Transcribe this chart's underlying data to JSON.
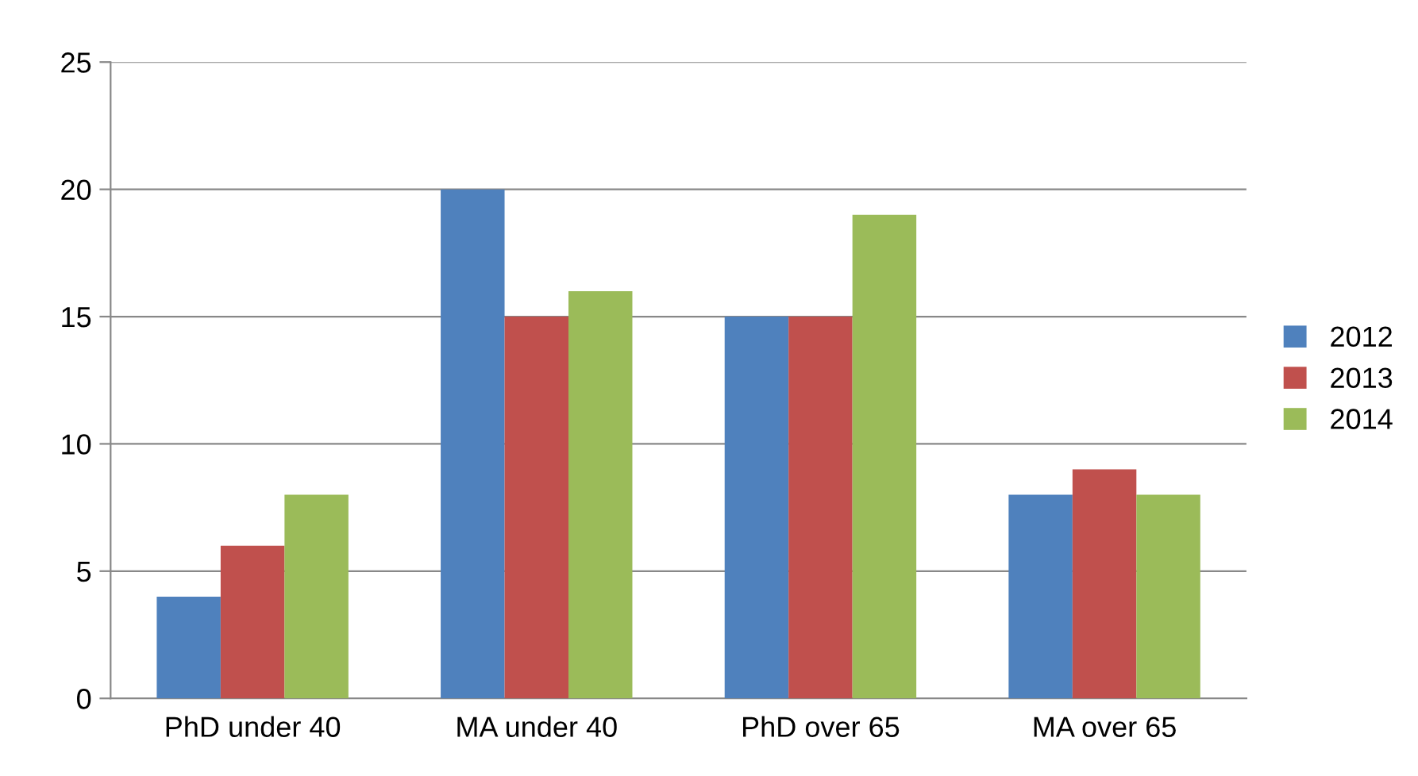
{
  "chart_data": {
    "type": "bar",
    "categories": [
      "PhD under 40",
      "MA under 40",
      "PhD over 65",
      "MA over 65"
    ],
    "series": [
      {
        "name": "2012",
        "color": "#4f81bd",
        "values": [
          4,
          20,
          15,
          8
        ]
      },
      {
        "name": "2013",
        "color": "#c0504d",
        "values": [
          6,
          15,
          15,
          9
        ]
      },
      {
        "name": "2014",
        "color": "#9bbb59",
        "values": [
          8,
          16,
          19,
          8
        ]
      }
    ],
    "ylim": [
      0,
      25
    ],
    "yticks": [
      0,
      5,
      10,
      15,
      20,
      25
    ],
    "grid": "y",
    "legend": "right"
  }
}
